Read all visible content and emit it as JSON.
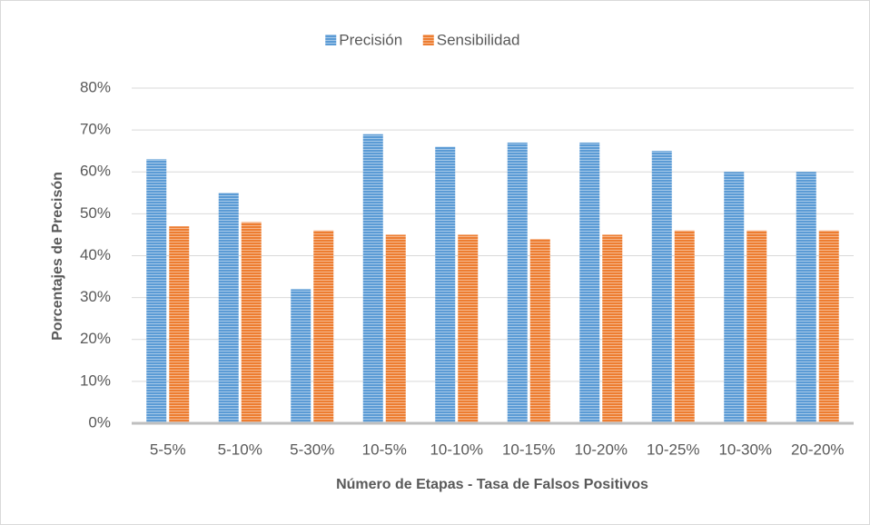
{
  "chart_data": {
    "type": "bar",
    "categories": [
      "5-5%",
      "5-10%",
      "5-30%",
      "10-5%",
      "10-10%",
      "10-15%",
      "10-20%",
      "10-25%",
      "10-30%",
      "20-20%"
    ],
    "series": [
      {
        "name": "Precisión",
        "color": "#5b9bd5",
        "values": [
          63,
          55,
          32,
          69,
          66,
          67,
          67,
          65,
          60,
          60
        ]
      },
      {
        "name": "Sensibilidad",
        "color": "#ed7d31",
        "values": [
          47,
          48,
          46,
          45,
          45,
          44,
          45,
          46,
          46,
          46
        ]
      }
    ],
    "x_label": "Número de Etapas - Tasa de Falsos Positivos",
    "y_label": "Porcentajes de Precisón",
    "ylim": [
      0,
      80
    ],
    "yticks": [
      {
        "value": 0,
        "label": "0%"
      },
      {
        "value": 10,
        "label": "10%"
      },
      {
        "value": 20,
        "label": "20%"
      },
      {
        "value": 30,
        "label": "30%"
      },
      {
        "value": 40,
        "label": "40%"
      },
      {
        "value": 50,
        "label": "50%"
      },
      {
        "value": 60,
        "label": "60%"
      },
      {
        "value": 70,
        "label": "70%"
      },
      {
        "value": 80,
        "label": "80%"
      }
    ],
    "grid": true,
    "legend": "top"
  }
}
